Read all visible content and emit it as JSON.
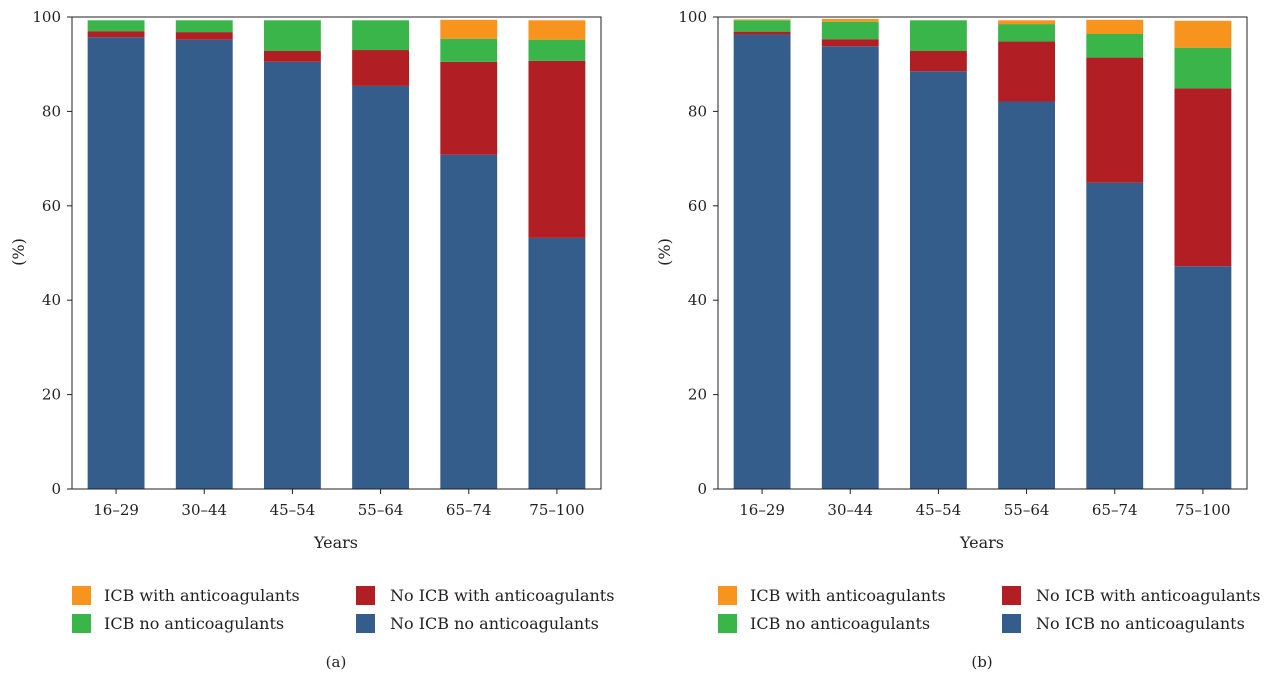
{
  "colors": {
    "ICB with anticoagulants": "#f7941d",
    "No ICB with anticoagulants": "#b11f24",
    "ICB no anticoagulants": "#39b54a",
    "No ICB no anticoagulants": "#355d8c"
  },
  "chart_data": [
    {
      "type": "bar",
      "stacked": true,
      "panel_label": "(a)",
      "title": "",
      "xlabel": "Years",
      "ylabel": "(%)",
      "ylim": [
        0,
        100
      ],
      "yticks": [
        0,
        20,
        40,
        60,
        80,
        100
      ],
      "grid": false,
      "legend_position": "bottom",
      "categories": [
        "16–29",
        "30–44",
        "45–54",
        "55–64",
        "65–74",
        "75–100"
      ],
      "series": [
        {
          "name": "No ICB no anticoagulants",
          "values": [
            95.7,
            95.2,
            90.5,
            85.4,
            70.8,
            53.2
          ]
        },
        {
          "name": "No ICB with anticoagulants",
          "values": [
            1.3,
            1.6,
            2.3,
            7.6,
            19.7,
            37.5
          ]
        },
        {
          "name": "ICB no anticoagulants",
          "values": [
            2.3,
            2.5,
            6.5,
            6.3,
            4.9,
            4.5
          ]
        },
        {
          "name": "ICB with anticoagulants",
          "values": [
            0.0,
            0.0,
            0.0,
            0.0,
            4.0,
            4.1
          ]
        }
      ],
      "legend_order": [
        "ICB with anticoagulants",
        "No ICB with anticoagulants",
        "ICB no anticoagulants",
        "No ICB no anticoagulants"
      ]
    },
    {
      "type": "bar",
      "stacked": true,
      "panel_label": "(b)",
      "title": "",
      "xlabel": "Years",
      "ylabel": "(%)",
      "ylim": [
        0,
        100
      ],
      "yticks": [
        0,
        20,
        40,
        60,
        80,
        100
      ],
      "grid": false,
      "legend_position": "bottom",
      "categories": [
        "16–29",
        "30–44",
        "45–54",
        "55–64",
        "65–74",
        "75–100"
      ],
      "series": [
        {
          "name": "No ICB no anticoagulants",
          "values": [
            96.3,
            93.8,
            88.5,
            82.1,
            64.9,
            47.2
          ]
        },
        {
          "name": "No ICB with anticoagulants",
          "values": [
            0.6,
            1.5,
            4.3,
            12.7,
            26.5,
            37.7
          ]
        },
        {
          "name": "ICB no anticoagulants",
          "values": [
            2.4,
            3.7,
            6.5,
            3.7,
            5.0,
            8.6
          ]
        },
        {
          "name": "ICB with anticoagulants",
          "values": [
            0.2,
            0.6,
            0.0,
            0.8,
            3.0,
            5.7
          ]
        }
      ],
      "legend_order": [
        "ICB with anticoagulants",
        "No ICB with anticoagulants",
        "ICB no anticoagulants",
        "No ICB no anticoagulants"
      ]
    }
  ]
}
